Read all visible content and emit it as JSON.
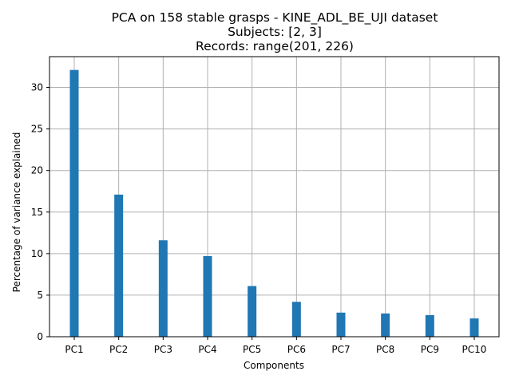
{
  "chart_data": {
    "type": "bar",
    "title_lines": [
      "PCA on 158 stable grasps - KINE_ADL_BE_UJI dataset",
      "Subjects: [2, 3]",
      "Records: range(201, 226)"
    ],
    "xlabel": "Components",
    "ylabel": "Percentage of variance explained",
    "categories": [
      "PC1",
      "PC2",
      "PC3",
      "PC4",
      "PC5",
      "PC6",
      "PC7",
      "PC8",
      "PC9",
      "PC10"
    ],
    "values": [
      32.1,
      17.1,
      11.6,
      9.7,
      6.1,
      4.2,
      2.9,
      2.8,
      2.6,
      2.2
    ],
    "ylim": [
      0,
      33.7
    ],
    "yticks": [
      0,
      5,
      10,
      15,
      20,
      25,
      30
    ],
    "grid": true,
    "bar_color": "#1f77b4"
  }
}
